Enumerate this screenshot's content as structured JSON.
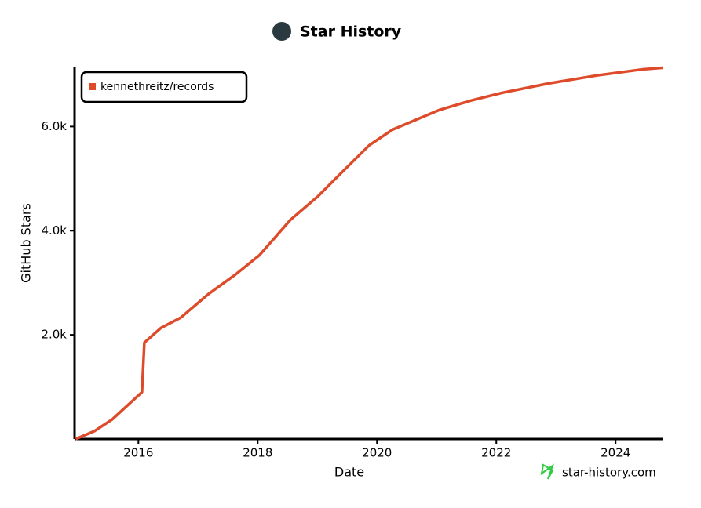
{
  "chart_data": {
    "type": "line",
    "title": "Star History",
    "x_label": "Date",
    "y_label": "GitHub Stars",
    "watermark": "star-history.com",
    "xlim": [
      2014.93,
      2024.8
    ],
    "ylim": [
      0,
      7150
    ],
    "xticks": [
      2016,
      2018,
      2020,
      2022,
      2024
    ],
    "yticks": [
      {
        "value": 2000,
        "label": "2.0k"
      },
      {
        "value": 4000,
        "label": "4.0k"
      },
      {
        "value": 6000,
        "label": "6.0k"
      }
    ],
    "legend": "top-left",
    "x": [
      2014.95,
      2015.26,
      2015.56,
      2016.06,
      2016.1,
      2016.38,
      2016.71,
      2017.17,
      2017.63,
      2018.03,
      2018.55,
      2019.01,
      2019.34,
      2019.87,
      2020.26,
      2021.05,
      2021.58,
      2022.11,
      2022.89,
      2023.68,
      2024.47,
      2024.8
    ],
    "series": [
      {
        "name": "kennethreitz/records",
        "color": "#dd4b2b",
        "values": [
          0,
          150,
          375,
          900,
          1850,
          2135,
          2330,
          2780,
          3160,
          3530,
          4210,
          4660,
          5040,
          5640,
          5940,
          6320,
          6500,
          6650,
          6830,
          6980,
          7100,
          7130
        ]
      }
    ]
  }
}
